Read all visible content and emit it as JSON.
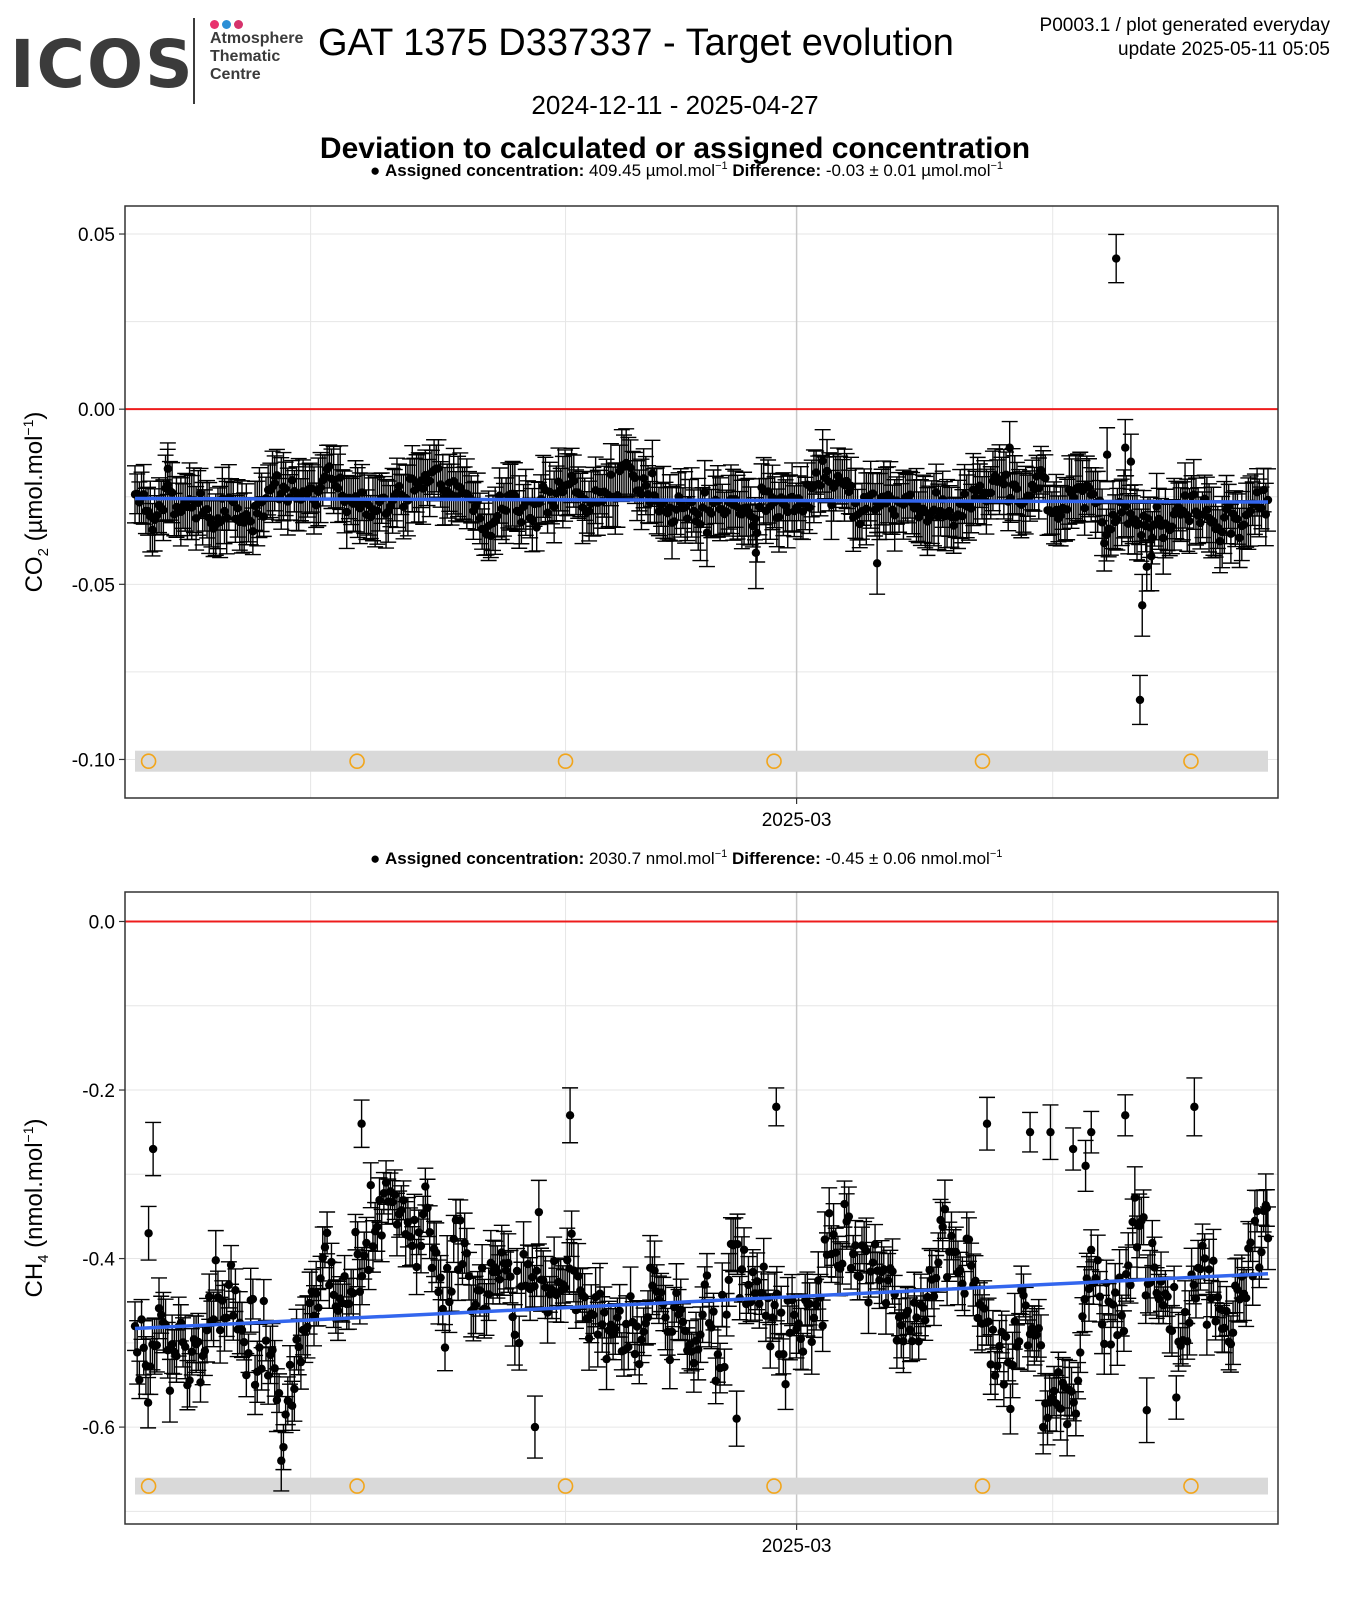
{
  "logo": {
    "word": "ICOS",
    "line1": "Atmosphere",
    "line2": "Thematic",
    "line3": "Centre",
    "dot_colors": [
      "#e8336e",
      "#2b8fd6",
      "#d6336c"
    ]
  },
  "header": {
    "title": "GAT 1375 D337337 - Target evolution",
    "date_range": "2024-12-11 - 2025-04-27",
    "section_title": "Deviation to calculated or assigned concentration",
    "meta_line1": "P0003.1 / plot generated everyday",
    "meta_line2": "update  2025-05-11 05:05"
  },
  "colors": {
    "reference_line": "#ee1c1c",
    "trend_line": "#3366ee",
    "points": "#000000",
    "band": "#d9d9d9",
    "circles": "#f2a51a",
    "grid": "#e6e6e6"
  },
  "chart_data": [
    {
      "type": "scatter",
      "id": "co2",
      "subtitle": {
        "bullet_label": "Assigned concentration:",
        "assigned_value": "409.45 µmol.mol",
        "assigned_sup": "−1",
        "diff_label": "Difference:",
        "diff_value": "-0.03 ± 0.01 µmol.mol",
        "diff_sup": "−1"
      },
      "ylabel_main": "CO",
      "ylabel_sub": "2",
      "ylabel_unit": " (µmol.mol",
      "ylabel_sup": "−1",
      "ylabel_close": ")",
      "x_domain": [
        "2024-12-11",
        "2025-04-27"
      ],
      "ylim": [
        -0.111,
        0.058
      ],
      "yticks": [
        0.05,
        0.0,
        -0.05,
        -0.1
      ],
      "ytick_labels": [
        "0.05",
        "0.00",
        "-0.05",
        "-0.10"
      ],
      "xtick_labels": [
        "2025-03"
      ],
      "reference_y": 0.0,
      "trend": {
        "start": -0.0255,
        "end": -0.0265
      },
      "band_y": -0.1005,
      "band_halfwidth": 0.003,
      "circle_x_fraction": [
        0.012,
        0.196,
        0.38,
        0.564,
        0.748,
        0.932
      ],
      "series_mean": -0.027,
      "series_spread": 0.005,
      "error_bar": 0.008,
      "highlights": [
        {
          "t": 0.029,
          "y": -0.017
        },
        {
          "t": 0.866,
          "y": 0.043
        },
        {
          "t": 0.858,
          "y": -0.013
        },
        {
          "t": 0.874,
          "y": -0.011
        },
        {
          "t": 0.879,
          "y": -0.015
        },
        {
          "t": 0.889,
          "y": -0.056
        },
        {
          "t": 0.887,
          "y": -0.083
        },
        {
          "t": 0.893,
          "y": -0.045
        },
        {
          "t": 0.897,
          "y": -0.042
        },
        {
          "t": 0.548,
          "y": -0.041
        },
        {
          "t": 0.655,
          "y": -0.044
        },
        {
          "t": 0.772,
          "y": -0.011
        }
      ]
    },
    {
      "type": "scatter",
      "id": "ch4",
      "subtitle": {
        "bullet_label": "Assigned concentration:",
        "assigned_value": "2030.7 nmol.mol",
        "assigned_sup": "−1",
        "diff_label": "Difference:",
        "diff_value": "-0.45 ± 0.06 nmol.mol",
        "diff_sup": "−1"
      },
      "ylabel_main": "CH",
      "ylabel_sub": "4",
      "ylabel_unit": " (nmol.mol",
      "ylabel_sup": "−1",
      "ylabel_close": ")",
      "x_domain": [
        "2024-12-11",
        "2025-04-27"
      ],
      "ylim": [
        -0.715,
        0.035
      ],
      "yticks": [
        0.0,
        -0.2,
        -0.4,
        -0.6
      ],
      "ytick_labels": [
        "0.0",
        "-0.2",
        "-0.4",
        "-0.6"
      ],
      "xtick_labels": [
        "2025-03"
      ],
      "reference_y": 0.0,
      "trend": {
        "start": -0.483,
        "end": -0.418
      },
      "band_y": -0.67,
      "band_halfwidth": 0.01,
      "circle_x_fraction": [
        0.012,
        0.196,
        0.38,
        0.564,
        0.748,
        0.932
      ],
      "series_mean": -0.46,
      "series_spread": 0.06,
      "error_bar": 0.03,
      "highlights": [
        {
          "t": 0.016,
          "y": -0.27
        },
        {
          "t": 0.2,
          "y": -0.24
        },
        {
          "t": 0.384,
          "y": -0.23
        },
        {
          "t": 0.566,
          "y": -0.22
        },
        {
          "t": 0.752,
          "y": -0.24
        },
        {
          "t": 0.79,
          "y": -0.25
        },
        {
          "t": 0.808,
          "y": -0.25
        },
        {
          "t": 0.828,
          "y": -0.27
        },
        {
          "t": 0.839,
          "y": -0.29
        },
        {
          "t": 0.844,
          "y": -0.25
        },
        {
          "t": 0.874,
          "y": -0.23
        },
        {
          "t": 0.935,
          "y": -0.22
        },
        {
          "t": 0.531,
          "y": -0.59
        },
        {
          "t": 0.353,
          "y": -0.6
        },
        {
          "t": 0.893,
          "y": -0.58
        },
        {
          "t": 0.012,
          "y": -0.37
        },
        {
          "t": 0.999,
          "y": -0.34
        }
      ]
    }
  ]
}
